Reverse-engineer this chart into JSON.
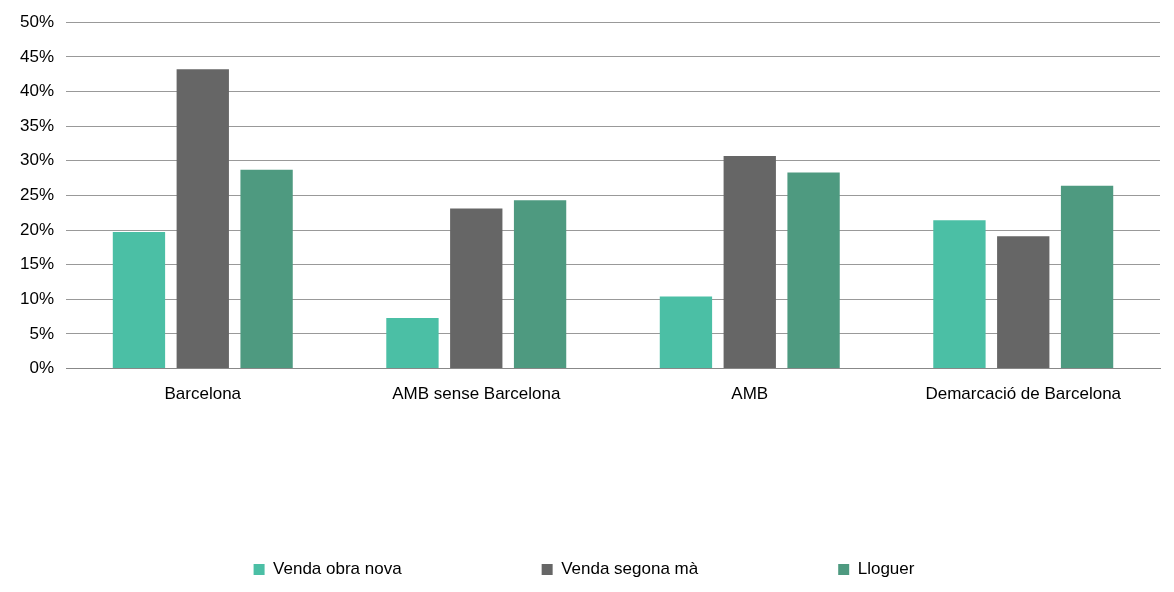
{
  "chart_data": {
    "type": "bar",
    "categories": [
      "Barcelona",
      "AMB sense Barcelona",
      "AMB",
      "Demarcació de Barcelona"
    ],
    "series": [
      {
        "name": "Venda obra nova",
        "color": "#4bbfa5",
        "values": [
          19.7,
          7.3,
          10.4,
          21.4
        ]
      },
      {
        "name": "Venda segona mà",
        "color": "#666666",
        "values": [
          43.2,
          23.1,
          30.7,
          19.1
        ]
      },
      {
        "name": "Lloguer",
        "color": "#4e9a80",
        "values": [
          28.7,
          24.3,
          28.3,
          26.4
        ]
      }
    ],
    "ylim": [
      0,
      50
    ],
    "yticks": [
      {
        "value": 0,
        "label": "0%"
      },
      {
        "value": 5,
        "label": "5%"
      },
      {
        "value": 10,
        "label": "10%"
      },
      {
        "value": 15,
        "label": "15%"
      },
      {
        "value": 20,
        "label": "20%"
      },
      {
        "value": 25,
        "label": "25%"
      },
      {
        "value": 30,
        "label": "30%"
      },
      {
        "value": 35,
        "label": "35%"
      },
      {
        "value": 40,
        "label": "40%"
      },
      {
        "value": 45,
        "label": "45%"
      },
      {
        "value": 50,
        "label": "50%"
      }
    ],
    "grid": "y",
    "legend": "bottom"
  }
}
